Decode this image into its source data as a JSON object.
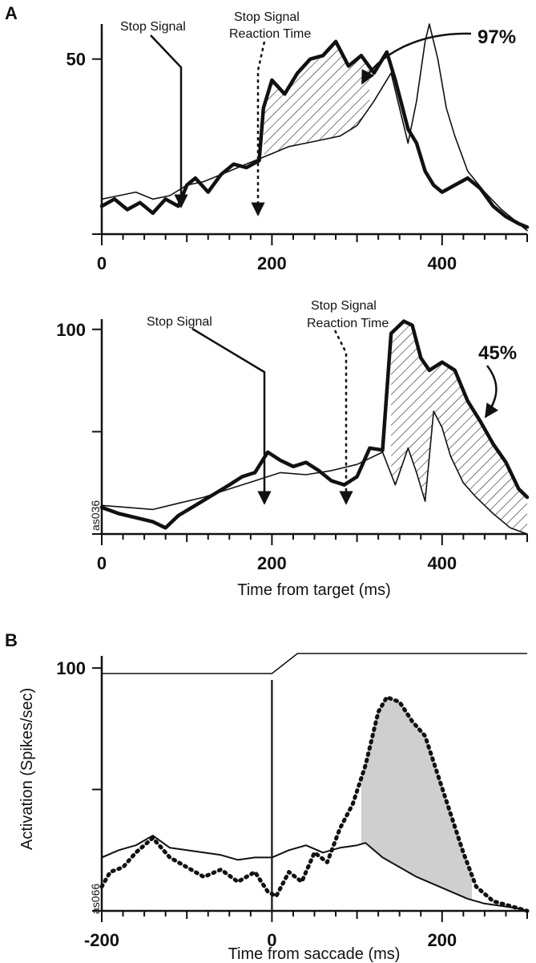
{
  "colors": {
    "ink": "#111111",
    "shade": "#cfcfcf",
    "background": "#ffffff"
  },
  "chart_data": [
    {
      "panel": "A",
      "type": "line",
      "xlim": [
        0,
        500
      ],
      "ylim": [
        0,
        60
      ],
      "x_ticks": [
        0,
        200,
        400
      ],
      "y_ticks": [
        50
      ],
      "xlabel": "",
      "ylabel": "",
      "annotations": {
        "stop_signal": "Stop Signal",
        "ssrt_line1": "Stop Signal",
        "ssrt_line2": "Reaction Time",
        "percent": "97%"
      },
      "stop_signal_x": 92,
      "ssrt_x": 180,
      "series": [
        {
          "style": "thick",
          "x": [
            0,
            15,
            30,
            45,
            60,
            75,
            90,
            100,
            110,
            125,
            140,
            155,
            170,
            185,
            190,
            200,
            215,
            230,
            245,
            260,
            275,
            290,
            305,
            320,
            335,
            345,
            360,
            370,
            380,
            390,
            400,
            415,
            430,
            445,
            460,
            475,
            490,
            500
          ],
          "y": [
            8,
            10,
            7,
            9,
            6,
            10,
            8,
            14,
            16,
            12,
            17,
            20,
            19,
            21,
            36,
            44,
            40,
            46,
            50,
            51,
            55,
            48,
            51,
            46,
            52,
            44,
            30,
            26,
            18,
            14,
            12,
            14,
            16,
            13,
            8,
            5,
            3,
            2
          ]
        },
        {
          "style": "thin",
          "x": [
            0,
            20,
            40,
            60,
            80,
            100,
            120,
            140,
            160,
            180,
            200,
            220,
            240,
            260,
            280,
            300,
            320,
            340,
            360,
            370,
            380,
            385,
            395,
            405,
            415,
            430,
            450,
            470,
            490,
            500
          ],
          "y": [
            10,
            11,
            12,
            10,
            11,
            14,
            15,
            17,
            19,
            21,
            23,
            25,
            26,
            27,
            28,
            31,
            38,
            46,
            26,
            38,
            55,
            60,
            50,
            36,
            28,
            18,
            12,
            7,
            3,
            1
          ]
        }
      ],
      "shaded_between_x": [
        190,
        315
      ]
    },
    {
      "panel": "",
      "type": "line",
      "xlim": [
        0,
        500
      ],
      "ylim": [
        0,
        105
      ],
      "x_ticks": [
        0,
        200,
        400
      ],
      "y_ticks": [
        100
      ],
      "xlabel": "Time from target (ms)",
      "ylabel": "",
      "corner_code": "as036",
      "annotations": {
        "stop_signal": "Stop Signal",
        "ssrt_line1": "Stop Signal",
        "ssrt_line2": "Reaction Time",
        "percent": "45%"
      },
      "stop_signal_x": 188,
      "ssrt_x": 285,
      "series": [
        {
          "style": "thick",
          "x": [
            0,
            20,
            40,
            60,
            75,
            90,
            110,
            130,
            150,
            165,
            180,
            195,
            210,
            225,
            240,
            255,
            270,
            285,
            300,
            315,
            330,
            340,
            355,
            365,
            375,
            385,
            400,
            415,
            430,
            445,
            460,
            475,
            490,
            500
          ],
          "y": [
            13,
            10,
            8,
            6,
            3,
            9,
            14,
            19,
            24,
            28,
            30,
            40,
            36,
            33,
            35,
            31,
            26,
            24,
            28,
            42,
            41,
            98,
            104,
            102,
            86,
            80,
            84,
            80,
            65,
            55,
            44,
            35,
            22,
            18
          ]
        },
        {
          "style": "thin",
          "x": [
            0,
            30,
            60,
            90,
            120,
            150,
            180,
            210,
            240,
            270,
            300,
            330,
            345,
            360,
            370,
            380,
            390,
            400,
            410,
            425,
            440,
            460,
            480,
            500
          ],
          "y": [
            14,
            13,
            12,
            15,
            18,
            22,
            26,
            30,
            29,
            31,
            34,
            40,
            24,
            42,
            30,
            16,
            60,
            52,
            38,
            25,
            18,
            10,
            3,
            0
          ]
        }
      ],
      "shaded_between_x": [
        340,
        500
      ]
    },
    {
      "panel": "B",
      "type": "line",
      "xlim": [
        -200,
        300
      ],
      "ylim": [
        0,
        105
      ],
      "x_ticks": [
        -200,
        0,
        200
      ],
      "y_ticks": [
        100
      ],
      "xlabel": "Time from saccade (ms)",
      "ylabel": "Activation (Spikes/sec)",
      "corner_code": "as066",
      "event_x": 0,
      "step_trace": {
        "x": [
          -200,
          0,
          30,
          300
        ],
        "y": [
          0,
          0,
          1,
          1
        ]
      },
      "series": [
        {
          "style": "solid",
          "x": [
            -200,
            -180,
            -160,
            -140,
            -120,
            -100,
            -80,
            -60,
            -40,
            -20,
            0,
            20,
            40,
            60,
            80,
            100,
            110,
            130,
            150,
            170,
            190,
            210,
            230,
            250,
            270,
            290,
            300
          ],
          "y": [
            22,
            25,
            27,
            31,
            26,
            25,
            24,
            23,
            21,
            22,
            22,
            25,
            27,
            24,
            26,
            27,
            28,
            22,
            18,
            14,
            11,
            8,
            5,
            3,
            2,
            1,
            0
          ]
        },
        {
          "style": "dotted",
          "x": [
            -200,
            -190,
            -175,
            -160,
            -140,
            -120,
            -100,
            -80,
            -60,
            -40,
            -20,
            -5,
            5,
            20,
            35,
            50,
            65,
            80,
            95,
            110,
            125,
            135,
            150,
            165,
            180,
            195,
            210,
            225,
            240,
            260,
            280,
            300
          ],
          "y": [
            10,
            16,
            18,
            24,
            30,
            22,
            18,
            14,
            17,
            12,
            16,
            8,
            6,
            16,
            12,
            24,
            20,
            34,
            44,
            60,
            82,
            88,
            86,
            78,
            72,
            56,
            40,
            24,
            10,
            4,
            2,
            0
          ]
        }
      ],
      "shaded_between_x": [
        105,
        235
      ]
    }
  ]
}
